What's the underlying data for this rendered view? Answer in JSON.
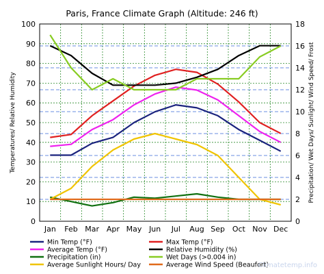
{
  "chart_data": {
    "type": "line",
    "title": "Paris, France Climate Graph (Altitude: 246 ft)",
    "ylabel_left": "Temperatures/ Relative Humidity",
    "ylabel_right": "Precipitation/ Wet Days/ Sunlight/ Wind Speed/ Frost",
    "ylim_left": [
      0,
      100
    ],
    "ylim_right": [
      0,
      18
    ],
    "yticks_left": [
      "0",
      "10",
      "20",
      "30",
      "40",
      "50",
      "60",
      "70",
      "80",
      "90",
      "100"
    ],
    "yticks_right": [
      "0",
      "2",
      "4",
      "6",
      "8",
      "10",
      "12",
      "14",
      "16",
      "18"
    ],
    "categories": [
      "Jan",
      "Feb",
      "Mar",
      "Apr",
      "May",
      "Jun",
      "Jul",
      "Aug",
      "Sep",
      "Oct",
      "Nov",
      "Dec"
    ],
    "grid": true,
    "legend_position": "bottom",
    "watermark": "Climatetemp.info",
    "series": [
      {
        "name": "Min Temp (°F)",
        "axis": "left",
        "color": "#1a237e",
        "values": [
          33.5,
          33.5,
          39.5,
          42.5,
          50,
          55.5,
          59,
          57.5,
          53.5,
          46.5,
          41,
          35.5
        ]
      },
      {
        "name": "Max Temp (°F)",
        "axis": "left",
        "color": "#e02020",
        "values": [
          42.5,
          44,
          53.5,
          61,
          68.5,
          74,
          77,
          75.5,
          69.5,
          60.5,
          50,
          44.5
        ]
      },
      {
        "name": "Average Temp (°F)",
        "axis": "left",
        "color": "#ee22ee",
        "values": [
          38,
          39,
          46.5,
          51.5,
          59,
          64.5,
          68,
          66.5,
          61.5,
          53.5,
          45.5,
          40
        ]
      },
      {
        "name": "Relative Humidity (%)",
        "axis": "left",
        "color": "#000000",
        "values": [
          89,
          84,
          75,
          69,
          69,
          69,
          70,
          73,
          77,
          84,
          89,
          89
        ]
      },
      {
        "name": "Precipitation (in)",
        "axis": "right",
        "color": "#107010",
        "values": [
          2.2,
          1.8,
          1.4,
          1.7,
          2.2,
          2.1,
          2.3,
          2.5,
          2.2,
          2.0,
          2.0,
          2.0
        ]
      },
      {
        "name": "Wet Days (>0.004 in)",
        "axis": "right",
        "color": "#88cc22",
        "values": [
          17,
          14,
          12,
          13,
          12,
          12,
          12,
          13,
          13,
          13,
          15,
          16
        ]
      },
      {
        "name": "Average Sunlight Hours/ Day",
        "axis": "right",
        "color": "#f0c400",
        "values": [
          2,
          3,
          5,
          6.5,
          7.5,
          8,
          7.5,
          7,
          6,
          4,
          2,
          1.5
        ]
      },
      {
        "name": "Average Wind Speed (Beaufort)",
        "axis": "right",
        "color": "#e06a1a",
        "values": [
          2,
          2,
          2,
          2,
          2,
          2,
          2,
          2,
          2,
          2,
          2,
          2
        ]
      }
    ]
  }
}
